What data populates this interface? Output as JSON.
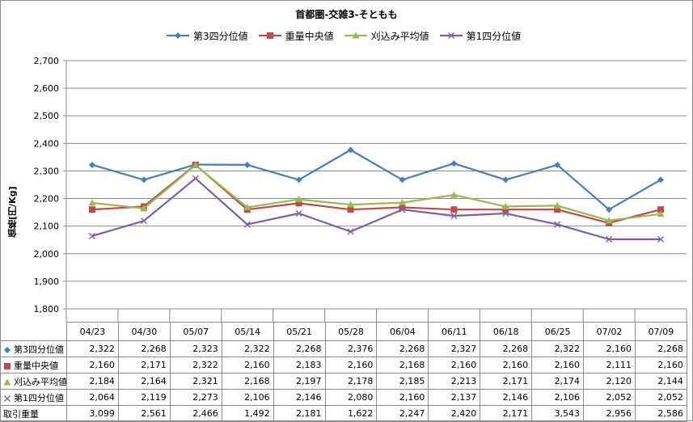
{
  "chart_data": {
    "type": "line",
    "title": "首都圏-交雑3-そともも",
    "ylabel": "価格[円/Kg]",
    "ylim": [
      1800,
      2700
    ],
    "yticks": [
      "1,800",
      "1,900",
      "2,000",
      "2,100",
      "2,200",
      "2,300",
      "2,400",
      "2,500",
      "2,600",
      "2,700"
    ],
    "categories": [
      "04/23",
      "04/30",
      "05/07",
      "05/14",
      "05/21",
      "05/28",
      "06/04",
      "06/11",
      "06/18",
      "06/25",
      "07/02",
      "07/09"
    ],
    "legend_position": "top",
    "grid": "horizontal",
    "series": [
      {
        "name": "第3四分位値",
        "color": "#4a7ebb",
        "marker": "diamond",
        "values": [
          2322,
          2268,
          2323,
          2322,
          2268,
          2376,
          2268,
          2327,
          2268,
          2322,
          2160,
          2268
        ],
        "labels": [
          "2,322",
          "2,268",
          "2,323",
          "2,322",
          "2,268",
          "2,376",
          "2,268",
          "2,327",
          "2,268",
          "2,322",
          "2,160",
          "2,268"
        ]
      },
      {
        "name": "重量中央値",
        "color": "#be4b48",
        "marker": "square",
        "values": [
          2160,
          2171,
          2322,
          2160,
          2183,
          2160,
          2168,
          2160,
          2160,
          2160,
          2111,
          2160
        ],
        "labels": [
          "2,160",
          "2,171",
          "2,322",
          "2,160",
          "2,183",
          "2,160",
          "2,168",
          "2,160",
          "2,160",
          "2,160",
          "2,111",
          "2,160"
        ]
      },
      {
        "name": "刈込み平均値",
        "color": "#98b954",
        "marker": "triangle",
        "values": [
          2184,
          2164,
          2321,
          2168,
          2197,
          2178,
          2185,
          2213,
          2171,
          2174,
          2120,
          2144
        ],
        "labels": [
          "2,184",
          "2,164",
          "2,321",
          "2,168",
          "2,197",
          "2,178",
          "2,185",
          "2,213",
          "2,171",
          "2,174",
          "2,120",
          "2,144"
        ]
      },
      {
        "name": "第1四分位値",
        "color": "#7d60a0",
        "marker": "x",
        "values": [
          2064,
          2119,
          2273,
          2106,
          2146,
          2080,
          2160,
          2137,
          2146,
          2106,
          2052,
          2052
        ],
        "labels": [
          "2,064",
          "2,119",
          "2,273",
          "2,106",
          "2,146",
          "2,080",
          "2,160",
          "2,137",
          "2,146",
          "2,106",
          "2,052",
          "2,052"
        ]
      }
    ],
    "extra_row": {
      "name": "取引重量",
      "labels": [
        "3,099",
        "2,561",
        "2,466",
        "1,492",
        "2,181",
        "1,622",
        "2,247",
        "2,420",
        "2,171",
        "3,543",
        "2,956",
        "2,586"
      ]
    }
  }
}
